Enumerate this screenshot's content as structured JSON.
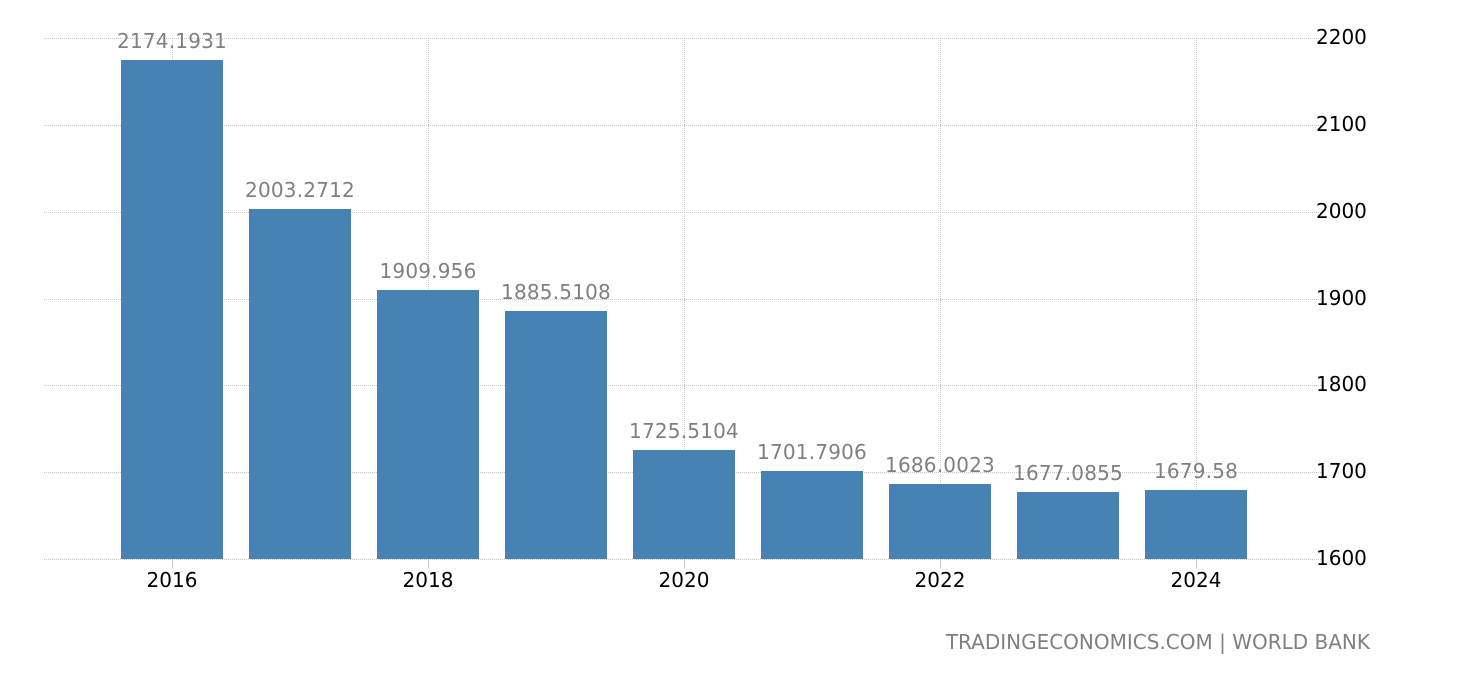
{
  "chart_data": {
    "type": "bar",
    "title": "",
    "xlabel": "",
    "ylabel": "",
    "categories": [
      "2016",
      "2017",
      "2018",
      "2019",
      "2020",
      "2021",
      "2022",
      "2023",
      "2024"
    ],
    "values": [
      2174.1931,
      2003.2712,
      1909.956,
      1885.5108,
      1725.5104,
      1701.7906,
      1686.0023,
      1677.0855,
      1679.58
    ],
    "value_labels": [
      "2174.1931",
      "2003.2712",
      "1909.956",
      "1885.5108",
      "1725.5104",
      "1701.7906",
      "1686.0023",
      "1677.0855",
      "1679.58"
    ],
    "x_tick_labels": [
      "2016",
      "2018",
      "2020",
      "2022",
      "2024"
    ],
    "y_tick_labels": [
      "2200",
      "2100",
      "2000",
      "1900",
      "1800",
      "1700",
      "1600"
    ],
    "y_ticks": [
      2200,
      2100,
      2000,
      1900,
      1800,
      1700,
      1600
    ],
    "ylim": [
      1600,
      2200
    ],
    "y_axis_position": "right",
    "grid": true,
    "legend": null,
    "bar_color": "#4682b4",
    "label_color": "#808080"
  },
  "footer": {
    "credit": "TRADINGECONOMICS.COM | WORLD BANK"
  }
}
